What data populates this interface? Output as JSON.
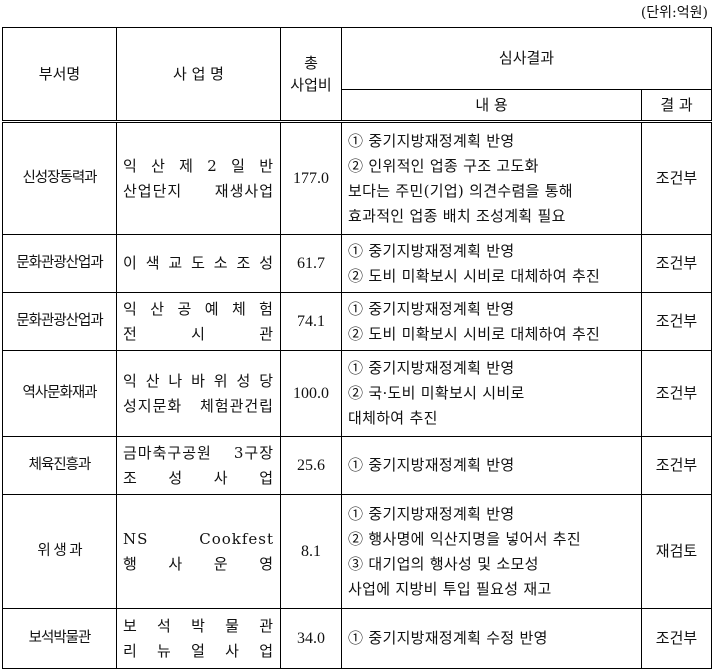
{
  "unit": "(단위:억원)",
  "header": {
    "dept": "부서명",
    "project": "사 업 명",
    "cost": [
      "총",
      "사업비"
    ],
    "review": "심사결과",
    "content": "내 용",
    "result": "결 과"
  },
  "rows": [
    {
      "dept": "신성장동력과",
      "project": [
        "익 산 제 2 일 반",
        "산업단지 재생사업"
      ],
      "cost": "177.0",
      "content": [
        "① 중기지방재정계획 반영",
        "② 인위적인 업종 구조 고도화",
        "보다는 주민(기업) 의견수렴을 통해",
        "효과적인 업종 배치 조성계획 필요"
      ],
      "result": "조건부"
    },
    {
      "dept": "문화관광산업과",
      "project": [
        "이 색 교 도 소 조 성"
      ],
      "cost": "61.7",
      "content": [
        "① 중기지방재정계획 반영",
        "② 도비 미확보시 시비로 대체하여 추진"
      ],
      "result": "조건부"
    },
    {
      "dept": "문화관광산업과",
      "project": [
        "익 산 공 예 체 험",
        "전 시 관"
      ],
      "cost": "74.1",
      "content": [
        "① 중기지방재정계획 반영",
        "② 도비 미확보시 시비로 대체하여 추진"
      ],
      "result": "조건부"
    },
    {
      "dept": "역사문화재과",
      "project": [
        "익 산 나 바 위 성 당",
        "성지문화 체험관건립"
      ],
      "cost": "100.0",
      "content": [
        "① 중기지방재정계획 반영",
        "② 국·도비 미확보시 시비로",
        "대체하여 추진"
      ],
      "result": "조건부"
    },
    {
      "dept": "체육진흥과",
      "project": [
        "금마축구공원 3구장",
        "조 성 사 업"
      ],
      "cost": "25.6",
      "content": [
        "① 중기지방재정계획 반영"
      ],
      "result": "조건부"
    },
    {
      "dept": "위 생 과",
      "project": [
        "NS Cookfest",
        "행 사 운 영"
      ],
      "cost": "8.1",
      "content": [
        "① 중기지방재정계획 반영",
        "② 행사명에 익산지명을 넣어서 추진",
        "③ 대기업의 행사성 및 소모성",
        "사업에 지방비 투입 필요성 재고"
      ],
      "result": "재검토"
    },
    {
      "dept": "보석박물관",
      "project": [
        "보 석 박 물 관",
        "리 뉴 얼 사 업"
      ],
      "cost": "34.0",
      "content": [
        "① 중기지방재정계획 수정 반영"
      ],
      "result": "조건부"
    }
  ]
}
